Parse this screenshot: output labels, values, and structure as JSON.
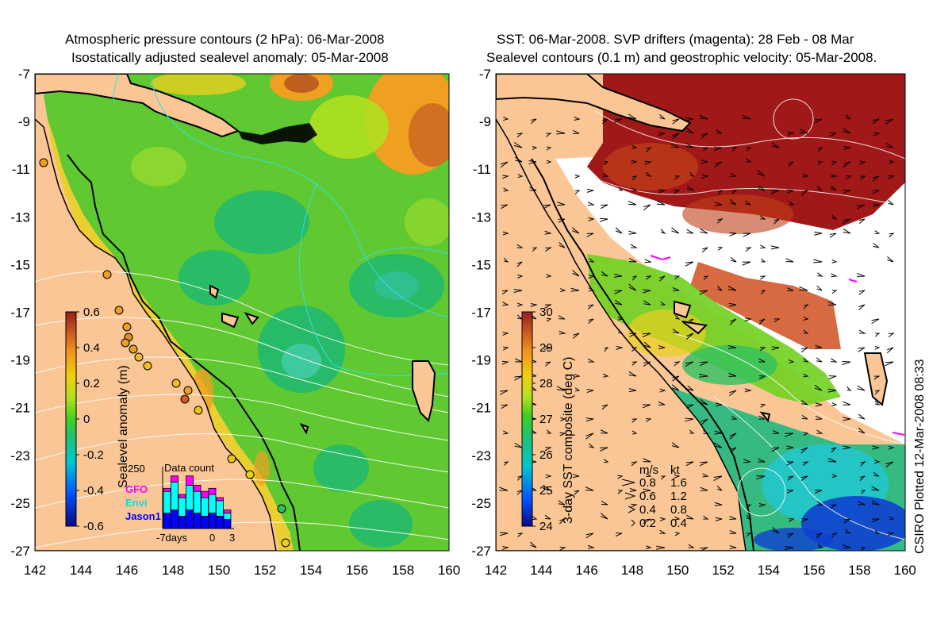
{
  "left_panel": {
    "title_line1": "Atmospheric pressure contours (2 hPa): 06-Mar-2008",
    "title_line2": "Isostatically adjusted sealevel anomaly: 05-Mar-2008",
    "colorbar": {
      "label": "Sealevel anomaly (m)",
      "ticks": [
        "0.6",
        "0.4",
        "0.2",
        "0",
        "-0.2",
        "-0.4",
        "-0.6"
      ]
    },
    "inset": {
      "title": "Data count",
      "ymax_label": "250",
      "x_labels": [
        "-7days",
        "0",
        "3"
      ],
      "legend": [
        {
          "name": "GFO",
          "color": "#ff00ff"
        },
        {
          "name": "Envi",
          "color": "#00ffff"
        },
        {
          "name": "Jason1",
          "color": "#0000ff"
        }
      ],
      "bars": [
        {
          "jason": 0.25,
          "envi": 0.35,
          "gfo": 0.05
        },
        {
          "jason": 0.3,
          "envi": 0.45,
          "gfo": 0.1
        },
        {
          "jason": 0.2,
          "envi": 0.3,
          "gfo": 0.05
        },
        {
          "jason": 0.3,
          "envi": 0.4,
          "gfo": 0.15
        },
        {
          "jason": 0.25,
          "envi": 0.35,
          "gfo": 0.1
        },
        {
          "jason": 0.2,
          "envi": 0.3,
          "gfo": 0.1
        },
        {
          "jason": 0.25,
          "envi": 0.3,
          "gfo": 0.1
        },
        {
          "jason": 0.2,
          "envi": 0.25,
          "gfo": 0.05
        },
        {
          "jason": 0.15,
          "envi": 0.1,
          "gfo": 0.05
        }
      ]
    }
  },
  "right_panel": {
    "title_line1": "SST: 06-Mar-2008. SVP drifters (magenta): 28 Feb - 08 Mar",
    "title_line2": "Sealevel contours (0.1 m) and geostrophic velocity: 05-Mar-2008.",
    "colorbar": {
      "label": "3-day SST composite (deg C)",
      "ticks": [
        "30",
        "29",
        "28",
        "27",
        "26",
        "25",
        "24"
      ]
    },
    "vector_legend": {
      "header_ms": "m/s",
      "header_kt": "kt",
      "rows": [
        {
          "ms": "0.8",
          "kt": "1.6"
        },
        {
          "ms": "0.6",
          "kt": "1.2"
        },
        {
          "ms": "0.4",
          "kt": "0.8"
        },
        {
          "ms": "0.2",
          "kt": "0.4"
        }
      ]
    },
    "credit": "CSIRO Plotted 12-Mar-2008 08:33"
  },
  "axes": {
    "lat_ticks": [
      "-7",
      "-9",
      "-11",
      "-13",
      "-15",
      "-17",
      "-19",
      "-21",
      "-23",
      "-25",
      "-27"
    ],
    "lon_ticks": [
      "142",
      "144",
      "146",
      "148",
      "150",
      "152",
      "154",
      "156",
      "158",
      "160"
    ]
  }
}
